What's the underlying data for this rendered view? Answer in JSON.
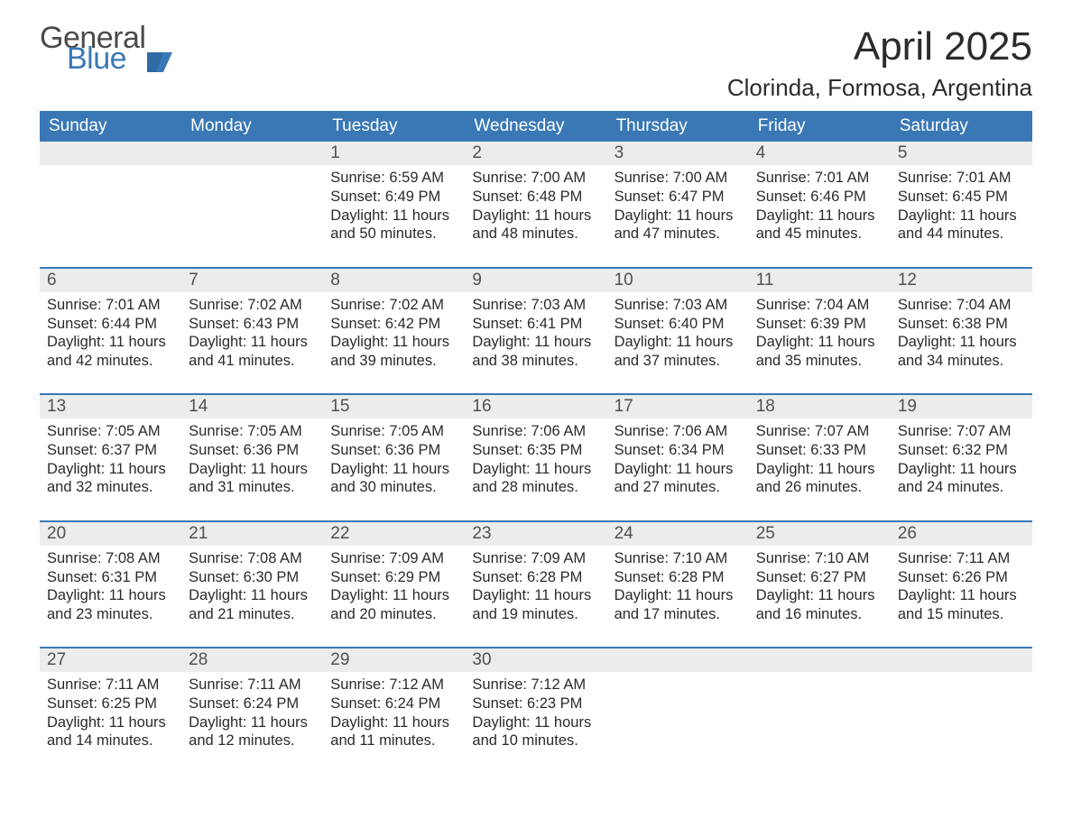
{
  "brand": {
    "line1": "General",
    "line2": "Blue"
  },
  "title": {
    "month": "April 2025",
    "location": "Clorinda, Formosa, Argentina"
  },
  "colors": {
    "header_bg": "#3a78b5",
    "header_text": "#ffffff",
    "daynum_bg": "#ececec",
    "rule": "#3a78b5",
    "text": "#2b2b2b"
  },
  "weekdays": [
    "Sunday",
    "Monday",
    "Tuesday",
    "Wednesday",
    "Thursday",
    "Friday",
    "Saturday"
  ],
  "weeks": [
    [
      null,
      null,
      {
        "n": "1",
        "sr": "6:59 AM",
        "ss": "6:49 PM",
        "dl": "11 hours and 50 minutes."
      },
      {
        "n": "2",
        "sr": "7:00 AM",
        "ss": "6:48 PM",
        "dl": "11 hours and 48 minutes."
      },
      {
        "n": "3",
        "sr": "7:00 AM",
        "ss": "6:47 PM",
        "dl": "11 hours and 47 minutes."
      },
      {
        "n": "4",
        "sr": "7:01 AM",
        "ss": "6:46 PM",
        "dl": "11 hours and 45 minutes."
      },
      {
        "n": "5",
        "sr": "7:01 AM",
        "ss": "6:45 PM",
        "dl": "11 hours and 44 minutes."
      }
    ],
    [
      {
        "n": "6",
        "sr": "7:01 AM",
        "ss": "6:44 PM",
        "dl": "11 hours and 42 minutes."
      },
      {
        "n": "7",
        "sr": "7:02 AM",
        "ss": "6:43 PM",
        "dl": "11 hours and 41 minutes."
      },
      {
        "n": "8",
        "sr": "7:02 AM",
        "ss": "6:42 PM",
        "dl": "11 hours and 39 minutes."
      },
      {
        "n": "9",
        "sr": "7:03 AM",
        "ss": "6:41 PM",
        "dl": "11 hours and 38 minutes."
      },
      {
        "n": "10",
        "sr": "7:03 AM",
        "ss": "6:40 PM",
        "dl": "11 hours and 37 minutes."
      },
      {
        "n": "11",
        "sr": "7:04 AM",
        "ss": "6:39 PM",
        "dl": "11 hours and 35 minutes."
      },
      {
        "n": "12",
        "sr": "7:04 AM",
        "ss": "6:38 PM",
        "dl": "11 hours and 34 minutes."
      }
    ],
    [
      {
        "n": "13",
        "sr": "7:05 AM",
        "ss": "6:37 PM",
        "dl": "11 hours and 32 minutes."
      },
      {
        "n": "14",
        "sr": "7:05 AM",
        "ss": "6:36 PM",
        "dl": "11 hours and 31 minutes."
      },
      {
        "n": "15",
        "sr": "7:05 AM",
        "ss": "6:36 PM",
        "dl": "11 hours and 30 minutes."
      },
      {
        "n": "16",
        "sr": "7:06 AM",
        "ss": "6:35 PM",
        "dl": "11 hours and 28 minutes."
      },
      {
        "n": "17",
        "sr": "7:06 AM",
        "ss": "6:34 PM",
        "dl": "11 hours and 27 minutes."
      },
      {
        "n": "18",
        "sr": "7:07 AM",
        "ss": "6:33 PM",
        "dl": "11 hours and 26 minutes."
      },
      {
        "n": "19",
        "sr": "7:07 AM",
        "ss": "6:32 PM",
        "dl": "11 hours and 24 minutes."
      }
    ],
    [
      {
        "n": "20",
        "sr": "7:08 AM",
        "ss": "6:31 PM",
        "dl": "11 hours and 23 minutes."
      },
      {
        "n": "21",
        "sr": "7:08 AM",
        "ss": "6:30 PM",
        "dl": "11 hours and 21 minutes."
      },
      {
        "n": "22",
        "sr": "7:09 AM",
        "ss": "6:29 PM",
        "dl": "11 hours and 20 minutes."
      },
      {
        "n": "23",
        "sr": "7:09 AM",
        "ss": "6:28 PM",
        "dl": "11 hours and 19 minutes."
      },
      {
        "n": "24",
        "sr": "7:10 AM",
        "ss": "6:28 PM",
        "dl": "11 hours and 17 minutes."
      },
      {
        "n": "25",
        "sr": "7:10 AM",
        "ss": "6:27 PM",
        "dl": "11 hours and 16 minutes."
      },
      {
        "n": "26",
        "sr": "7:11 AM",
        "ss": "6:26 PM",
        "dl": "11 hours and 15 minutes."
      }
    ],
    [
      {
        "n": "27",
        "sr": "7:11 AM",
        "ss": "6:25 PM",
        "dl": "11 hours and 14 minutes."
      },
      {
        "n": "28",
        "sr": "7:11 AM",
        "ss": "6:24 PM",
        "dl": "11 hours and 12 minutes."
      },
      {
        "n": "29",
        "sr": "7:12 AM",
        "ss": "6:24 PM",
        "dl": "11 hours and 11 minutes."
      },
      {
        "n": "30",
        "sr": "7:12 AM",
        "ss": "6:23 PM",
        "dl": "11 hours and 10 minutes."
      },
      null,
      null,
      null
    ]
  ],
  "labels": {
    "sunrise": "Sunrise: ",
    "sunset": "Sunset: ",
    "daylight": "Daylight: "
  }
}
